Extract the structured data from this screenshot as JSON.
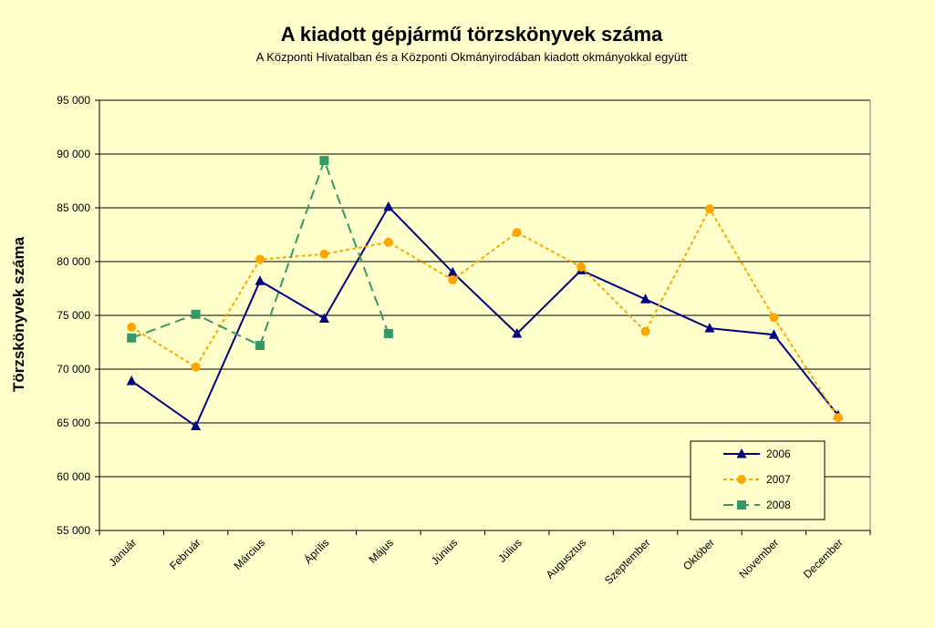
{
  "chart_data": {
    "type": "line",
    "title": "A  kiadott gépjármű  törzskönyvek száma",
    "subtitle": "A Központi Hivatalban és a Központi Okmányirodában kiadott okmányokkal együtt",
    "ylabel": "Törzskönyvek száma",
    "xlabel": "",
    "ylim": [
      55000,
      95000
    ],
    "ytick_step": 5000,
    "ytick_labels": [
      "55 000",
      "60 000",
      "65 000",
      "70 000",
      "75 000",
      "80 000",
      "85 000",
      "90 000",
      "95 000"
    ],
    "categories": [
      "Január",
      "Február",
      "Március",
      "Április",
      "Május",
      "Június",
      "Július",
      "Augusztus",
      "Szeptember",
      "Október",
      "November",
      "December"
    ],
    "grid": "horizontal",
    "legend_position": "bottom-right",
    "series": [
      {
        "name": "2006",
        "color": "#000080",
        "dash": "solid",
        "marker": "triangle",
        "values": [
          68900,
          64700,
          78200,
          74700,
          85100,
          79000,
          73300,
          79200,
          76500,
          73800,
          73200,
          65700
        ]
      },
      {
        "name": "2007",
        "color": "#ffa500",
        "dash": "dotted",
        "marker": "circle",
        "values": [
          73900,
          70200,
          80200,
          80700,
          81800,
          78300,
          82700,
          79500,
          73500,
          84900,
          74800,
          65500
        ]
      },
      {
        "name": "2008",
        "color": "#339966",
        "dash": "dashed",
        "marker": "square",
        "values": [
          72900,
          75100,
          72200,
          89400,
          73300,
          null,
          null,
          null,
          null,
          null,
          null,
          null
        ]
      }
    ]
  }
}
